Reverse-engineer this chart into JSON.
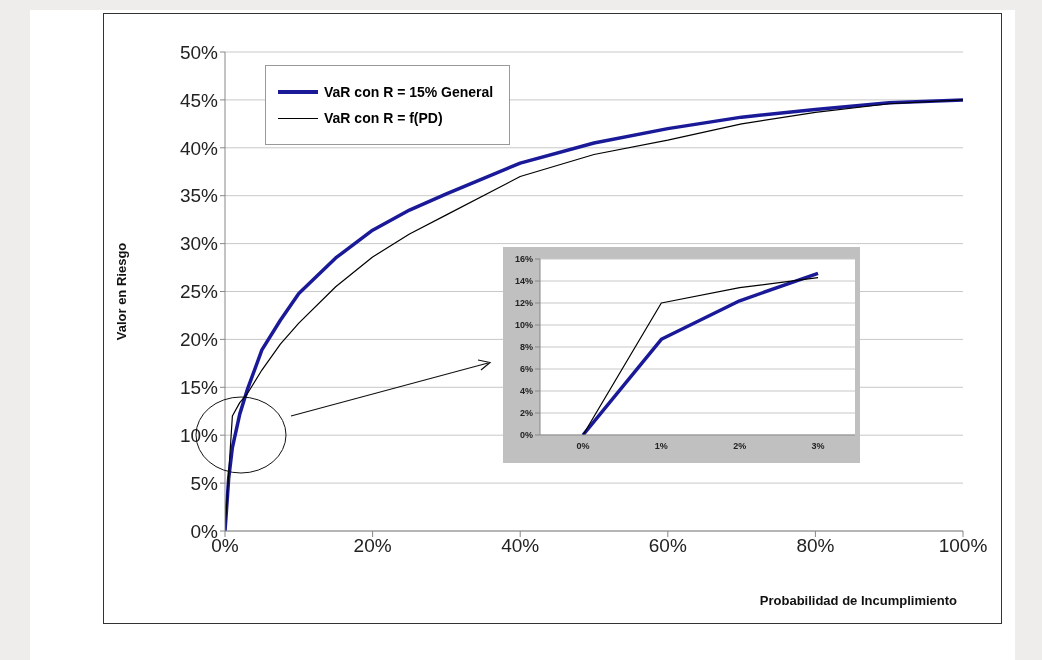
{
  "chart_data": [
    {
      "type": "line",
      "xlabel": "Probabilidad de Incumplimiento",
      "ylabel": "Valor en Riesgo",
      "x": [
        0,
        0.5,
        1,
        2,
        3,
        5,
        7.5,
        10,
        15,
        20,
        25,
        30,
        40,
        50,
        60,
        70,
        80,
        90,
        100
      ],
      "series": [
        {
          "name": "VaR con R = 15% General",
          "color": "#1a1a99",
          "values": [
            0,
            5.5,
            8.7,
            12.2,
            14.7,
            18.9,
            22,
            24.8,
            28.5,
            31.4,
            33.5,
            35.2,
            38.4,
            40.5,
            42,
            43.2,
            44,
            44.7,
            45
          ]
        },
        {
          "name": "VaR con R = f(PD)",
          "color": "#000000",
          "values": [
            0,
            6,
            12,
            13.4,
            14.3,
            16.8,
            19.5,
            21.7,
            25.5,
            28.6,
            31,
            33,
            37,
            39.3,
            40.8,
            42.5,
            43.7,
            44.6,
            45
          ]
        }
      ],
      "xlim": [
        0,
        100
      ],
      "xticks": [
        {
          "value": 0,
          "label": "0%"
        },
        {
          "value": 20,
          "label": "20%"
        },
        {
          "value": 40,
          "label": "40%"
        },
        {
          "value": 60,
          "label": "60%"
        },
        {
          "value": 80,
          "label": "80%"
        },
        {
          "value": 100,
          "label": "100%"
        }
      ],
      "ylim": [
        0,
        50
      ],
      "yticks": [
        {
          "value": 0,
          "label": "0%"
        },
        {
          "value": 5,
          "label": "5%"
        },
        {
          "value": 10,
          "label": "10%"
        },
        {
          "value": 15,
          "label": "15%"
        },
        {
          "value": 20,
          "label": "20%"
        },
        {
          "value": 25,
          "label": "25%"
        },
        {
          "value": 30,
          "label": "30%"
        },
        {
          "value": 35,
          "label": "35%"
        },
        {
          "value": 40,
          "label": "40%"
        },
        {
          "value": 45,
          "label": "45%"
        },
        {
          "value": 50,
          "label": "50%"
        }
      ],
      "grid": "y",
      "legend": "top left",
      "marker": "none",
      "line_style": "solid"
    },
    {
      "type": "line",
      "categories": [
        "0%",
        "1%",
        "2%",
        "3%"
      ],
      "series": [
        {
          "color": "#1a1a99",
          "values": [
            0,
            8.7,
            12.2,
            14.7
          ]
        },
        {
          "color": "#000000",
          "values": [
            0,
            12,
            13.4,
            14.3
          ]
        }
      ],
      "ylim": [
        0,
        16
      ],
      "yticks": [
        {
          "value": 0,
          "label": "0%"
        },
        {
          "value": 2,
          "label": "2%"
        },
        {
          "value": 4,
          "label": "4%"
        },
        {
          "value": 6,
          "label": "6%"
        },
        {
          "value": 8,
          "label": "8%"
        },
        {
          "value": 10,
          "label": "10%"
        },
        {
          "value": 12,
          "label": "12%"
        },
        {
          "value": 14,
          "label": "14%"
        },
        {
          "value": 16,
          "label": "16%"
        }
      ],
      "grid": "y",
      "marker": "none",
      "line_style": "solid"
    }
  ]
}
